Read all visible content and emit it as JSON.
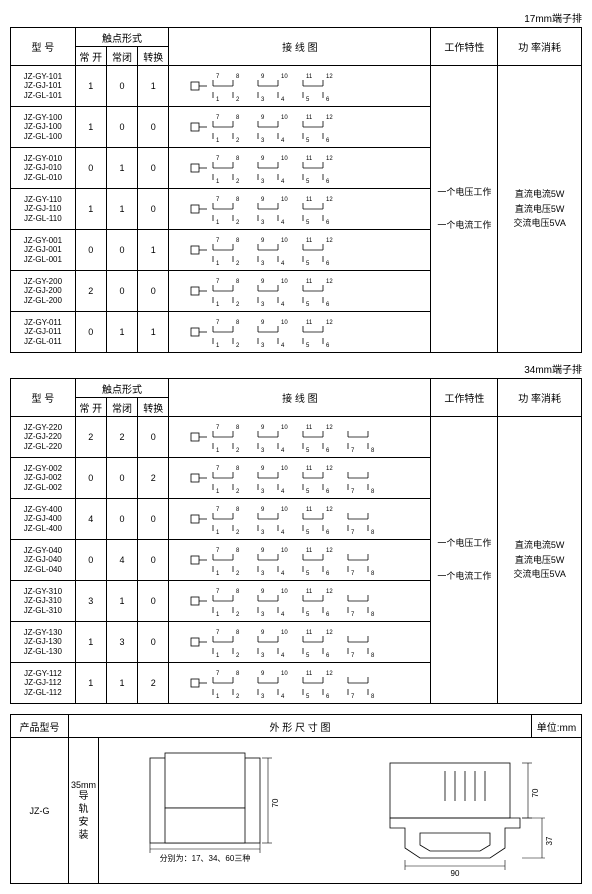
{
  "section1_label": "17mm端子排",
  "section2_label": "34mm端子排",
  "headers": {
    "model": "型 号",
    "contact_form": "触点形式",
    "no": "常 开",
    "nc": "常闭",
    "co": "转换",
    "wiring": "接 线 图",
    "work_char": "工作特性",
    "power": "功 率消耗"
  },
  "table1": {
    "rows": [
      {
        "models": [
          "JZ-GY-101",
          "JZ-GJ-101",
          "JZ-GL-101"
        ],
        "no": "1",
        "nc": "0",
        "co": "1",
        "schematic": 1
      },
      {
        "models": [
          "JZ-GY-100",
          "JZ-GJ-100",
          "JZ-GL-100"
        ],
        "no": "1",
        "nc": "0",
        "co": "0",
        "schematic": 1
      },
      {
        "models": [
          "JZ-GY-010",
          "JZ-GJ-010",
          "JZ-GL-010"
        ],
        "no": "0",
        "nc": "1",
        "co": "0",
        "schematic": 1
      },
      {
        "models": [
          "JZ-GY-110",
          "JZ-GJ-110",
          "JZ-GL-110"
        ],
        "no": "1",
        "nc": "1",
        "co": "0",
        "schematic": 1
      },
      {
        "models": [
          "JZ-GY-001",
          "JZ-GJ-001",
          "JZ-GL-001"
        ],
        "no": "0",
        "nc": "0",
        "co": "1",
        "schematic": 1
      },
      {
        "models": [
          "JZ-GY-200",
          "JZ-GJ-200",
          "JZ-GL-200"
        ],
        "no": "2",
        "nc": "0",
        "co": "0",
        "schematic": 1
      },
      {
        "models": [
          "JZ-GY-011",
          "JZ-GJ-011",
          "JZ-GL-011"
        ],
        "no": "0",
        "nc": "1",
        "co": "1",
        "schematic": 1
      }
    ],
    "char_text1": "一个电压工作",
    "char_text2": "一个电流工作",
    "power_lines": [
      "直流电流5W",
      "直流电压5W",
      "交流电压5VA"
    ]
  },
  "table2": {
    "rows": [
      {
        "models": [
          "JZ-GY-220",
          "JZ-GJ-220",
          "JZ-GL-220"
        ],
        "no": "2",
        "nc": "2",
        "co": "0",
        "schematic": 2
      },
      {
        "models": [
          "JZ-GY-002",
          "JZ-GJ-002",
          "JZ-GL-002"
        ],
        "no": "0",
        "nc": "0",
        "co": "2",
        "schematic": 2
      },
      {
        "models": [
          "JZ-GY-400",
          "JZ-GJ-400",
          "JZ-GL-400"
        ],
        "no": "4",
        "nc": "0",
        "co": "0",
        "schematic": 2
      },
      {
        "models": [
          "JZ-GY-040",
          "JZ-GJ-040",
          "JZ-GL-040"
        ],
        "no": "0",
        "nc": "4",
        "co": "0",
        "schematic": 2
      },
      {
        "models": [
          "JZ-GY-310",
          "JZ-GJ-310",
          "JZ-GL-310"
        ],
        "no": "3",
        "nc": "1",
        "co": "0",
        "schematic": 2
      },
      {
        "models": [
          "JZ-GY-130",
          "JZ-GJ-130",
          "JZ-GL-130"
        ],
        "no": "1",
        "nc": "3",
        "co": "0",
        "schematic": 2
      },
      {
        "models": [
          "JZ-GY-112",
          "JZ-GJ-112",
          "JZ-GL-112"
        ],
        "no": "1",
        "nc": "1",
        "co": "2",
        "schematic": 2
      }
    ],
    "char_text1": "一个电压工作",
    "char_text2": "一个电流工作",
    "power_lines": [
      "直流电流5W",
      "直流电压5W",
      "交流电压5VA"
    ]
  },
  "dim_table": {
    "h_model": "产品型号",
    "h_drawing": "外 形 尺 寸 图",
    "h_unit": "单位:mm",
    "model": "JZ-G",
    "rail_label_top": "35mm",
    "rail_label": "导轨安装",
    "caption": "分别为：17、34、60三种",
    "dim_70": "70",
    "dim_90": "90",
    "dim_37": "37"
  },
  "schematic_colors": {
    "wire": "#000000",
    "bg": "#ffffff"
  }
}
